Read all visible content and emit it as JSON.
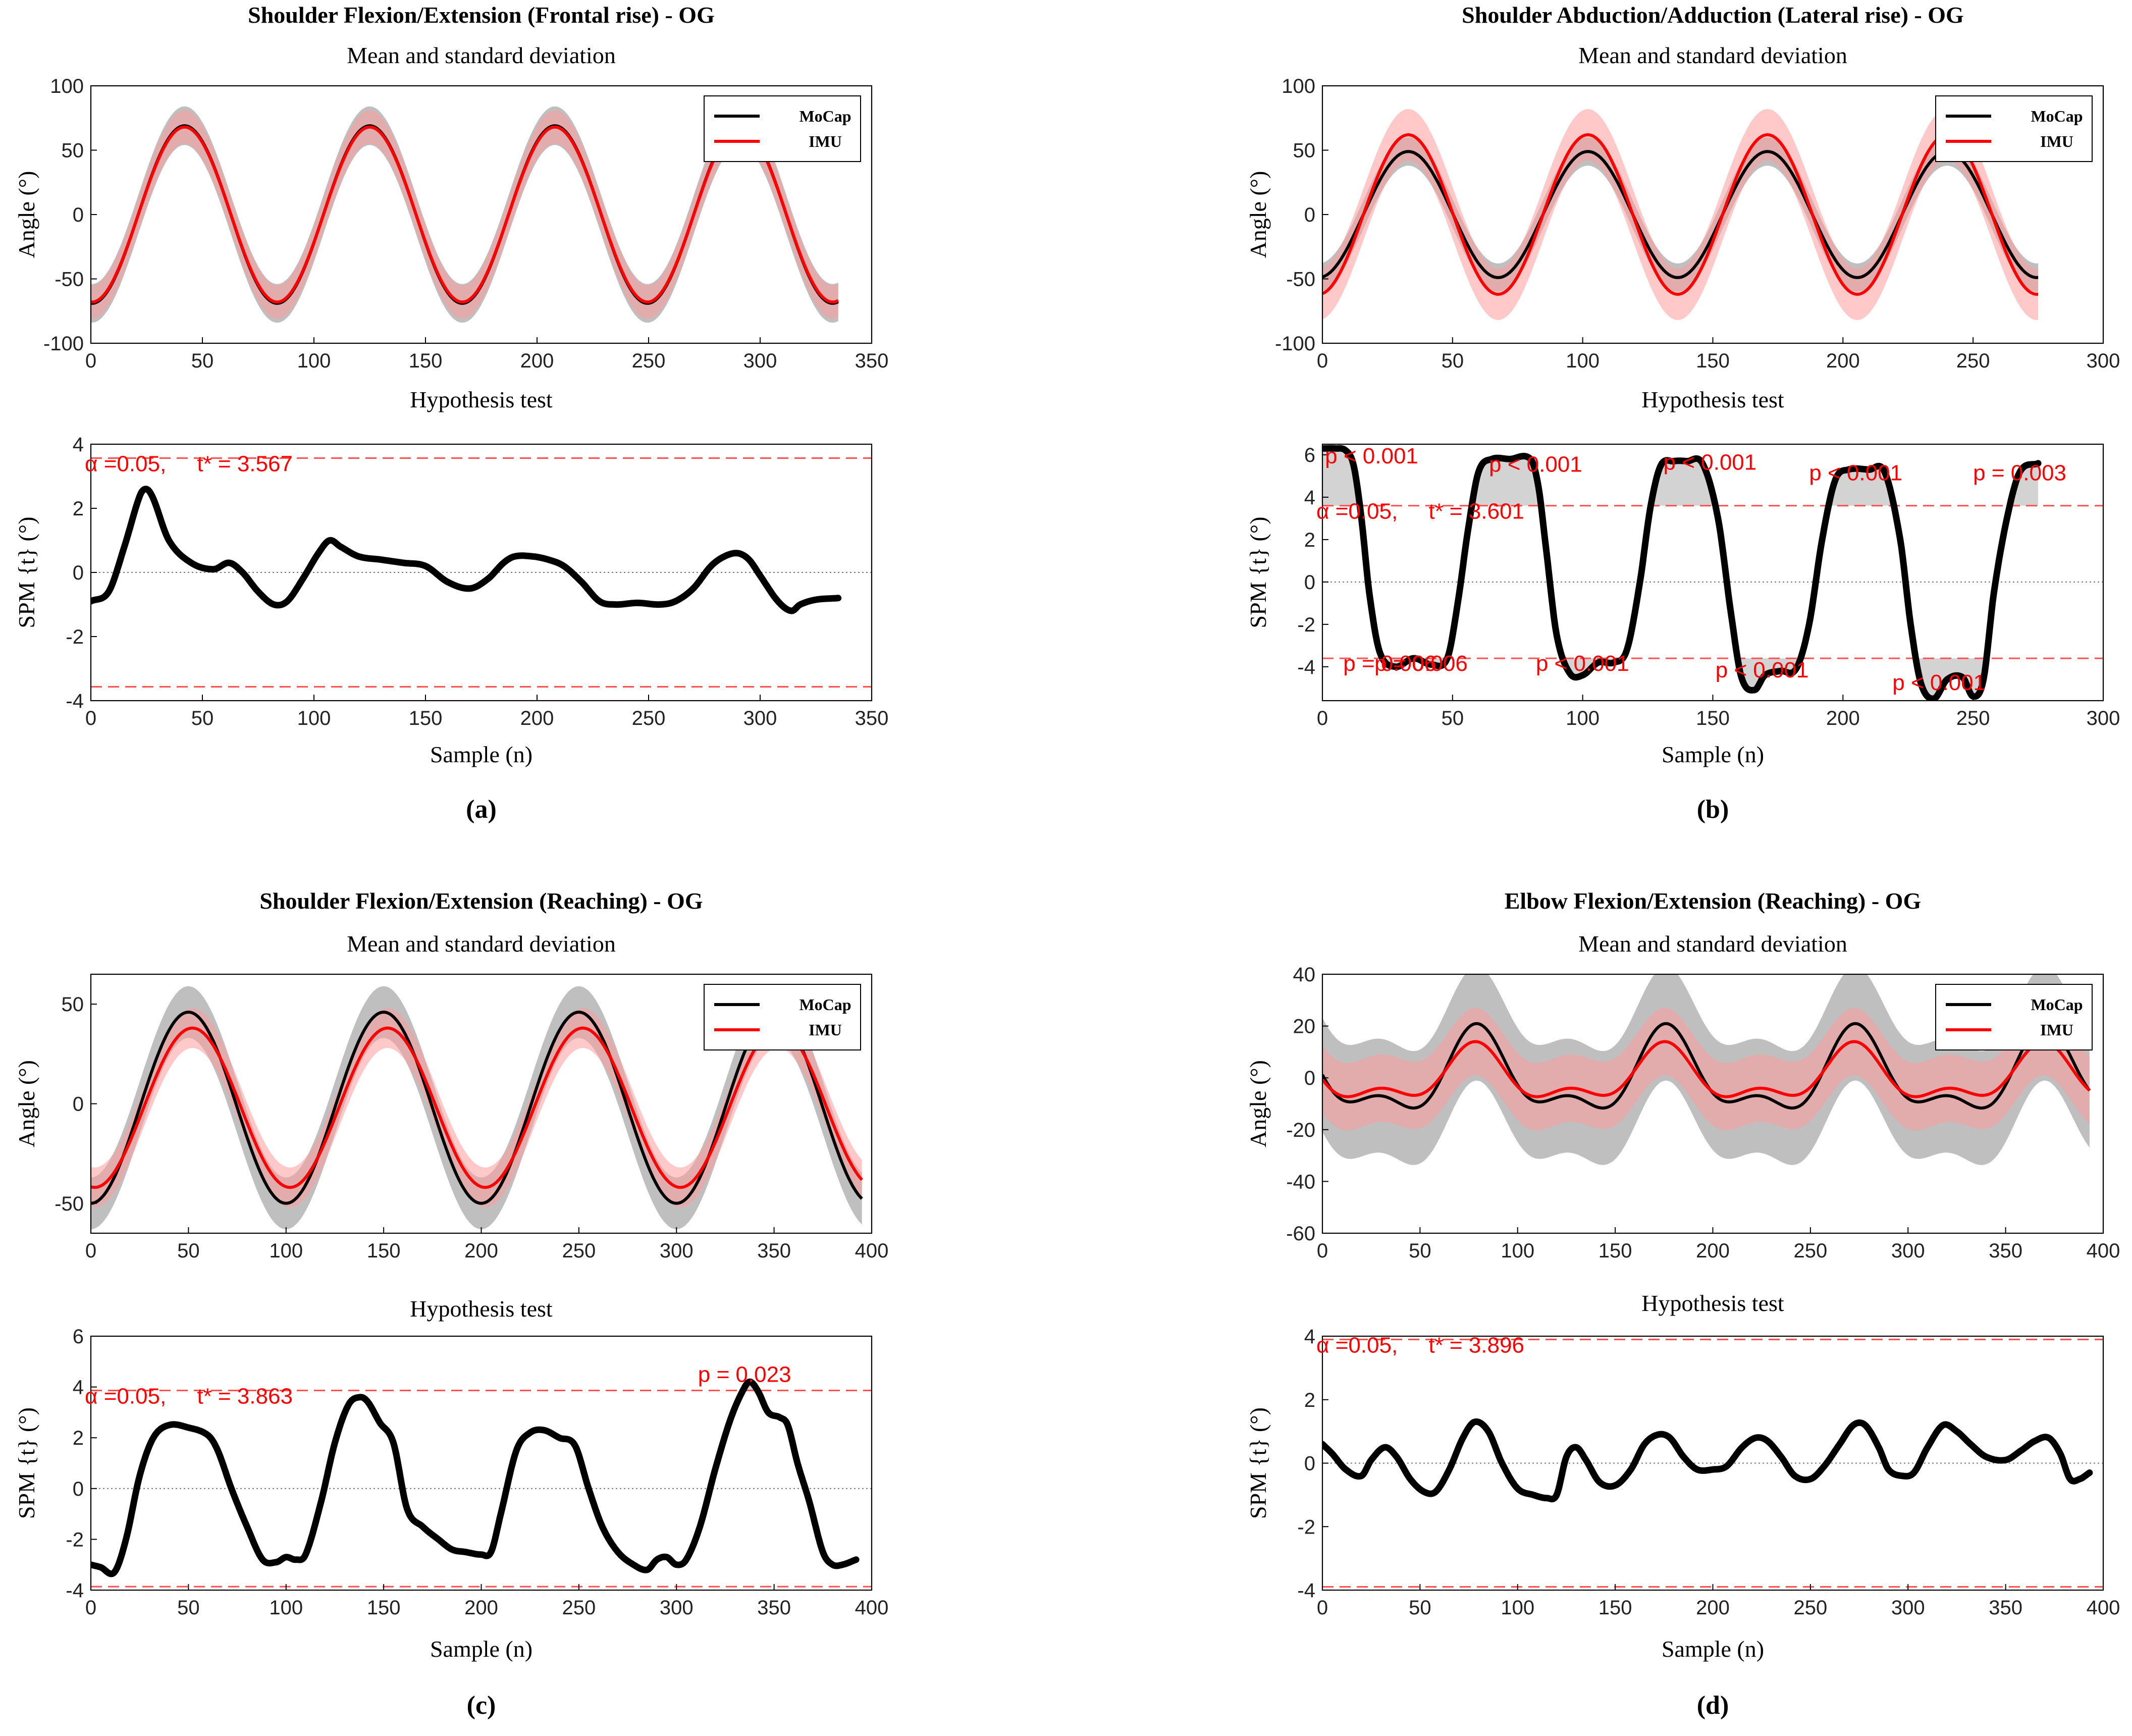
{
  "colors": {
    "mocap": "#000000",
    "imu": "#ff0000",
    "mocap_band": "#b4b4b4",
    "imu_band": "#ff9c9c",
    "threshold": "#ff5050",
    "stat_text": "#ff0000",
    "zero_line": "#777777"
  },
  "chart_data": [
    {
      "panel": "(a)",
      "title": "Shoulder Flexion/Extension (Frontal rise) - OG",
      "top": {
        "type": "line",
        "subtitle": "Mean and standard deviation",
        "ylabel": "Angle (°)",
        "xlim": [
          0,
          350
        ],
        "ylim": [
          -100,
          100
        ],
        "xticks": [
          0,
          50,
          100,
          150,
          200,
          250,
          300,
          350
        ],
        "yticks": [
          -100,
          -50,
          0,
          50,
          100
        ],
        "n_samples": 335,
        "legend": [
          "MoCap",
          "IMU"
        ],
        "legend_position": "top-right",
        "series": [
          {
            "name": "MoCap",
            "wave": {
              "offset": 0,
              "amplitude": 69,
              "period": 83,
              "peak_at": 42
            },
            "sd": 15
          },
          {
            "name": "IMU",
            "wave": {
              "offset": 0,
              "amplitude": 68,
              "period": 83,
              "peak_at": 42
            },
            "sd": 13
          }
        ]
      },
      "bottom": {
        "type": "line",
        "subtitle": "Hypothesis test",
        "xlabel": "Sample (n)",
        "ylabel": "SPM {t} (°)",
        "xlim": [
          0,
          350
        ],
        "ylim": [
          -4,
          4
        ],
        "xticks": [
          0,
          50,
          100,
          150,
          200,
          250,
          300,
          350
        ],
        "yticks": [
          -4,
          -2,
          0,
          2,
          4
        ],
        "threshold": 3.567,
        "alpha_label": "α =0.05,     t* = 3.567",
        "spm_t": {
          "x": [
            0,
            8,
            15,
            22,
            25,
            28,
            35,
            45,
            55,
            62,
            68,
            75,
            82,
            88,
            95,
            102,
            107,
            112,
            120,
            130,
            140,
            150,
            160,
            170,
            178,
            185,
            190,
            198,
            205,
            212,
            220,
            228,
            235,
            245,
            255,
            262,
            270,
            278,
            284,
            290,
            295,
            300,
            308,
            314,
            318,
            325,
            335
          ],
          "y": [
            -0.9,
            -0.6,
            0.8,
            2.4,
            2.6,
            2.3,
            1.0,
            0.3,
            0.1,
            0.3,
            0.0,
            -0.6,
            -1.0,
            -0.9,
            -0.2,
            0.6,
            1.0,
            0.8,
            0.5,
            0.4,
            0.3,
            0.2,
            -0.3,
            -0.5,
            -0.2,
            0.3,
            0.5,
            0.5,
            0.4,
            0.2,
            -0.3,
            -0.9,
            -1.0,
            -0.95,
            -1.0,
            -0.9,
            -0.5,
            0.2,
            0.5,
            0.6,
            0.4,
            -0.1,
            -0.9,
            -1.2,
            -1.0,
            -0.85,
            -0.8
          ]
        },
        "annotations": []
      }
    },
    {
      "panel": "(b)",
      "title": "Shoulder Abduction/Adduction (Lateral rise) - OG",
      "top": {
        "type": "line",
        "subtitle": "Mean and standard deviation",
        "ylabel": "Angle (°)",
        "xlim": [
          0,
          300
        ],
        "ylim": [
          -100,
          100
        ],
        "xticks": [
          0,
          50,
          100,
          150,
          200,
          250,
          300
        ],
        "yticks": [
          -100,
          -50,
          0,
          50,
          100
        ],
        "n_samples": 275,
        "legend": [
          "MoCap",
          "IMU"
        ],
        "legend_position": "top-right",
        "series": [
          {
            "name": "MoCap",
            "wave": {
              "offset": 0,
              "amplitude": 49,
              "period": 69,
              "peak_at": 33
            },
            "sd": 11
          },
          {
            "name": "IMU",
            "wave": {
              "offset": 0,
              "amplitude": 62,
              "period": 69,
              "peak_at": 33
            },
            "sd": 20
          }
        ]
      },
      "bottom": {
        "type": "line",
        "subtitle": "Hypothesis test",
        "xlabel": "Sample (n)",
        "ylabel": "SPM {t} (°)",
        "xlim": [
          0,
          300
        ],
        "ylim": [
          -5.6,
          6.5
        ],
        "xticks": [
          0,
          50,
          100,
          150,
          200,
          250,
          300
        ],
        "yticks": [
          -4,
          -2,
          0,
          2,
          4,
          6
        ],
        "threshold": 3.601,
        "alpha_label": "α =0.05,     t* = 3.601",
        "spm_t": {
          "x": [
            0,
            5,
            9,
            12,
            15,
            18,
            22,
            28,
            35,
            42,
            48,
            52,
            56,
            60,
            65,
            72,
            80,
            83,
            86,
            90,
            95,
            100,
            106,
            112,
            117,
            122,
            126,
            130,
            135,
            140,
            146,
            152,
            157,
            161,
            166,
            170,
            176,
            182,
            187,
            192,
            197,
            202,
            210,
            216,
            222,
            226,
            230,
            235,
            240,
            246,
            250,
            254,
            258,
            263,
            268,
            275
          ],
          "y": [
            6.3,
            6.3,
            6.2,
            5.5,
            3.0,
            -0.5,
            -3.3,
            -4.0,
            -3.6,
            -3.9,
            -3.6,
            -1.0,
            2.5,
            5.2,
            5.8,
            5.8,
            5.8,
            4.5,
            1.5,
            -2.5,
            -4.3,
            -4.4,
            -3.8,
            -3.8,
            -3.2,
            0.0,
            3.5,
            5.5,
            5.7,
            5.7,
            5.6,
            3.0,
            -1.5,
            -4.5,
            -5.1,
            -4.4,
            -4.2,
            -4.1,
            -2.0,
            2.0,
            4.8,
            5.3,
            5.3,
            5.2,
            2.0,
            -2.0,
            -4.8,
            -5.5,
            -4.6,
            -4.5,
            -5.4,
            -4.6,
            -0.5,
            3.0,
            5.2,
            5.6
          ]
        },
        "annotations": [
          {
            "text": "p < 0.001",
            "x": 1,
            "y": 5.6
          },
          {
            "text": "p < 0.001",
            "x": 64,
            "y": 5.2
          },
          {
            "text": "p < 0.001",
            "x": 131,
            "y": 5.3
          },
          {
            "text": "p < 0.001",
            "x": 187,
            "y": 4.8
          },
          {
            "text": "p = 0.003",
            "x": 250,
            "y": 4.8
          },
          {
            "text": "p = 0.006",
            "x": 8,
            "y": -4.2
          },
          {
            "text": "p = 0.006",
            "x": 20,
            "y": -4.2
          },
          {
            "text": "p < 0.001",
            "x": 82,
            "y": -4.2
          },
          {
            "text": "p < 0.001",
            "x": 151,
            "y": -4.5
          },
          {
            "text": "p < 0.001",
            "x": 219,
            "y": -5.1
          }
        ]
      }
    },
    {
      "panel": "(c)",
      "title": "Shoulder Flexion/Extension (Reaching) - OG",
      "top": {
        "type": "line",
        "subtitle": "Mean and standard deviation",
        "ylabel": "Angle (°)",
        "xlim": [
          0,
          400
        ],
        "ylim": [
          -65,
          65
        ],
        "xticks": [
          0,
          50,
          100,
          150,
          200,
          250,
          300,
          350,
          400
        ],
        "yticks": [
          -50,
          0,
          50
        ],
        "n_samples": 395,
        "legend": [
          "MoCap",
          "IMU"
        ],
        "legend_position": "top-right",
        "series": [
          {
            "name": "MoCap",
            "wave": {
              "offset": -2,
              "amplitude": 48,
              "period": 100,
              "peak_at": 50
            },
            "sd": 13
          },
          {
            "name": "IMU",
            "wave": {
              "offset": -2,
              "amplitude": 40,
              "period": 100,
              "peak_at": 52
            },
            "sd": 10
          }
        ]
      },
      "bottom": {
        "type": "line",
        "subtitle": "Hypothesis test",
        "xlabel": "Sample (n)",
        "ylabel": "SPM {t} (°)",
        "xlim": [
          0,
          400
        ],
        "ylim": [
          -4,
          6
        ],
        "xticks": [
          0,
          50,
          100,
          150,
          200,
          250,
          300,
          350,
          400
        ],
        "yticks": [
          -4,
          -2,
          0,
          2,
          4,
          6
        ],
        "threshold": 3.863,
        "alpha_label": "α =0.05,     t* = 3.863",
        "spm_t": {
          "x": [
            0,
            5,
            12,
            18,
            25,
            32,
            40,
            50,
            60,
            65,
            72,
            80,
            88,
            95,
            100,
            105,
            110,
            118,
            125,
            132,
            138,
            142,
            148,
            155,
            162,
            170,
            178,
            185,
            192,
            200,
            205,
            210,
            218,
            225,
            232,
            240,
            248,
            255,
            262,
            270,
            278,
            285,
            290,
            295,
            300,
            305,
            312,
            320,
            328,
            335,
            338,
            342,
            347,
            353,
            357,
            362,
            368,
            375,
            380,
            385,
            392
          ],
          "y": [
            -3.0,
            -3.1,
            -3.3,
            -2.0,
            0.5,
            2.0,
            2.5,
            2.4,
            2.1,
            1.5,
            0.0,
            -1.5,
            -2.8,
            -2.9,
            -2.7,
            -2.8,
            -2.6,
            -0.5,
            1.8,
            3.3,
            3.6,
            3.4,
            2.6,
            1.8,
            -0.8,
            -1.5,
            -2.0,
            -2.4,
            -2.5,
            -2.6,
            -2.5,
            -1.0,
            1.5,
            2.2,
            2.3,
            2.0,
            1.7,
            0.0,
            -1.5,
            -2.5,
            -3.0,
            -3.2,
            -2.8,
            -2.7,
            -3.0,
            -2.8,
            -1.5,
            0.8,
            2.8,
            4.0,
            4.2,
            3.8,
            3.0,
            2.8,
            2.5,
            1.0,
            -0.5,
            -2.5,
            -3.0,
            -3.0,
            -2.8
          ]
        },
        "annotations": [
          {
            "text": "p = 0.023",
            "x": 311,
            "y": 4.2
          }
        ]
      }
    },
    {
      "panel": "(d)",
      "title": "Elbow Flexion/Extension (Reaching) - OG",
      "top": {
        "type": "line",
        "subtitle": "Mean and standard deviation",
        "ylabel": "Angle (°)",
        "xlim": [
          0,
          400
        ],
        "ylim": [
          -60,
          40
        ],
        "xticks": [
          0,
          50,
          100,
          150,
          200,
          250,
          300,
          350,
          400
        ],
        "yticks": [
          -60,
          -40,
          -20,
          0,
          20,
          40
        ],
        "n_samples": 393,
        "legend": [
          "MoCap",
          "IMU"
        ],
        "legend_position": "top-right",
        "series": [
          {
            "name": "MoCap",
            "two_waves": {
              "a1": 14,
              "p1": 97,
              "peak1": 80,
              "a2": 7,
              "p2": 48.5,
              "peak2": 30
            },
            "sd": 22
          },
          {
            "name": "IMU",
            "two_waves": {
              "a1": 9,
              "p1": 97,
              "peak1": 78,
              "a2": 5,
              "p2": 48.5,
              "peak2": 30
            },
            "sd": 13
          }
        ]
      },
      "bottom": {
        "type": "line",
        "subtitle": "Hypothesis test",
        "xlabel": "Sample (n)",
        "ylabel": "SPM {t} (°)",
        "xlim": [
          0,
          400
        ],
        "ylim": [
          -4,
          4
        ],
        "xticks": [
          0,
          50,
          100,
          150,
          200,
          250,
          300,
          350,
          400
        ],
        "yticks": [
          -4,
          -2,
          0,
          2,
          4
        ],
        "threshold": 3.896,
        "alpha_label": "α =0.05,     t* = 3.896",
        "spm_t": {
          "x": [
            0,
            5,
            12,
            20,
            25,
            32,
            38,
            45,
            52,
            58,
            65,
            72,
            78,
            85,
            92,
            100,
            108,
            115,
            120,
            125,
            130,
            135,
            142,
            150,
            158,
            165,
            172,
            178,
            185,
            192,
            200,
            207,
            215,
            222,
            228,
            235,
            242,
            250,
            257,
            265,
            272,
            278,
            285,
            290,
            297,
            303,
            310,
            318,
            325,
            332,
            340,
            350,
            358,
            365,
            372,
            378,
            383,
            388,
            393
          ],
          "y": [
            0.6,
            0.3,
            -0.2,
            -0.4,
            0.1,
            0.5,
            0.2,
            -0.5,
            -0.9,
            -0.9,
            -0.2,
            0.8,
            1.3,
            1.0,
            0.0,
            -0.8,
            -1.0,
            -1.1,
            -1.0,
            0.2,
            0.5,
            0.1,
            -0.6,
            -0.7,
            -0.2,
            0.6,
            0.9,
            0.8,
            0.2,
            -0.2,
            -0.2,
            -0.1,
            0.5,
            0.8,
            0.7,
            0.2,
            -0.4,
            -0.5,
            -0.1,
            0.6,
            1.2,
            1.2,
            0.5,
            -0.2,
            -0.4,
            -0.3,
            0.5,
            1.2,
            1.0,
            0.6,
            0.2,
            0.1,
            0.4,
            0.7,
            0.8,
            0.3,
            -0.5,
            -0.5,
            -0.3
          ]
        },
        "annotations": []
      }
    }
  ]
}
